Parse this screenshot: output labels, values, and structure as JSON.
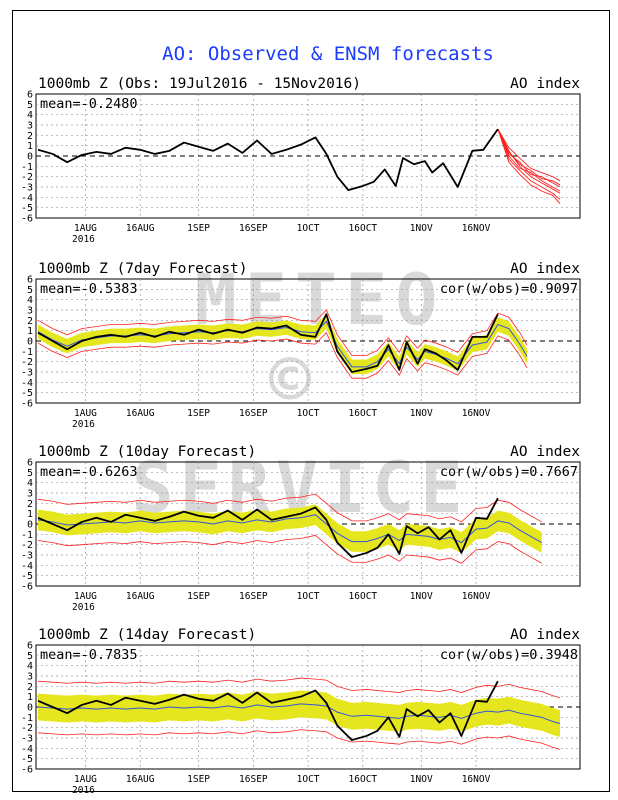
{
  "title": "AO: Observed & ENSM forecasts",
  "watermark": [
    "METEO",
    "©",
    "SERVICE"
  ],
  "colors": {
    "title": "#1a3cff",
    "observed": "#000000",
    "ensemble_mean": "#3355dd",
    "ensemble_members": "#ff2020",
    "spread": "#e6e61e",
    "grid": "#999999",
    "watermark": "#d9d9d9"
  },
  "chart_data": [
    {
      "type": "line",
      "panel_title": "1000mb Z (Obs: 19Jul2016 - 15Nov2016)",
      "right_label": "AO index",
      "mean_label": "mean=-0.2480",
      "cor_label": "",
      "x_ticks": [
        "1AUG",
        "16AUG",
        "1SEP",
        "16SEP",
        "1OCT",
        "16OCT",
        "1NOV",
        "16NOV"
      ],
      "x_year_label": "2016",
      "ylim": [
        -6,
        6
      ],
      "y_ticks": [
        6,
        5,
        4,
        3,
        2,
        1,
        0,
        -1,
        -2,
        -3,
        -4,
        -5,
        -6
      ],
      "grid": true,
      "observed": [
        [
          0,
          0.6
        ],
        [
          4,
          0.2
        ],
        [
          8,
          -0.6
        ],
        [
          12,
          0.1
        ],
        [
          16,
          0.4
        ],
        [
          20,
          0.2
        ],
        [
          24,
          0.8
        ],
        [
          28,
          0.6
        ],
        [
          32,
          0.2
        ],
        [
          36,
          0.5
        ],
        [
          40,
          1.3
        ],
        [
          44,
          0.9
        ],
        [
          48,
          0.5
        ],
        [
          52,
          1.2
        ],
        [
          56,
          0.3
        ],
        [
          60,
          1.5
        ],
        [
          64,
          0.2
        ],
        [
          68,
          0.6
        ],
        [
          72,
          1.1
        ],
        [
          76,
          1.8
        ],
        [
          79,
          0.2
        ],
        [
          82,
          -2.0
        ],
        [
          85,
          -3.3
        ],
        [
          89,
          -2.9
        ],
        [
          92,
          -2.5
        ],
        [
          95,
          -1.3
        ],
        [
          98,
          -2.9
        ],
        [
          100,
          -0.2
        ],
        [
          103,
          -0.8
        ],
        [
          106,
          -0.5
        ],
        [
          108,
          -1.6
        ],
        [
          111,
          -0.7
        ],
        [
          115,
          -3.0
        ],
        [
          119,
          0.5
        ],
        [
          122,
          0.6
        ],
        [
          126,
          2.6
        ]
      ],
      "members": [
        [
          [
            126,
            2.6
          ],
          [
            129,
            0.5
          ],
          [
            132,
            -1.0
          ],
          [
            135,
            -2.0
          ],
          [
            138,
            -2.6
          ],
          [
            141,
            -3.2
          ],
          [
            143,
            -3.6
          ]
        ],
        [
          [
            126,
            2.6
          ],
          [
            129,
            0.2
          ],
          [
            132,
            -0.6
          ],
          [
            135,
            -1.8
          ],
          [
            138,
            -2.0
          ],
          [
            141,
            -2.6
          ],
          [
            143,
            -3.0
          ]
        ],
        [
          [
            126,
            2.6
          ],
          [
            129,
            -0.3
          ],
          [
            132,
            -1.4
          ],
          [
            135,
            -2.4
          ],
          [
            138,
            -3.0
          ],
          [
            141,
            -3.6
          ],
          [
            143,
            -4.2
          ]
        ],
        [
          [
            126,
            2.6
          ],
          [
            129,
            0.8
          ],
          [
            132,
            -0.2
          ],
          [
            135,
            -1.2
          ],
          [
            138,
            -1.6
          ],
          [
            141,
            -2.0
          ],
          [
            143,
            -2.4
          ]
        ],
        [
          [
            126,
            2.6
          ],
          [
            129,
            0.0
          ],
          [
            132,
            -1.2
          ],
          [
            135,
            -1.6
          ],
          [
            138,
            -2.4
          ],
          [
            141,
            -3.0
          ],
          [
            143,
            -3.4
          ]
        ],
        [
          [
            126,
            2.6
          ],
          [
            129,
            -0.6
          ],
          [
            132,
            -1.8
          ],
          [
            135,
            -2.8
          ],
          [
            138,
            -3.4
          ],
          [
            141,
            -3.8
          ],
          [
            143,
            -4.6
          ]
        ],
        [
          [
            126,
            2.6
          ],
          [
            129,
            0.4
          ],
          [
            132,
            -0.8
          ],
          [
            135,
            -1.4
          ],
          [
            138,
            -2.2
          ],
          [
            141,
            -2.4
          ],
          [
            143,
            -2.8
          ]
        ]
      ]
    },
    {
      "type": "line",
      "panel_title": "1000mb Z (7day Forecast)",
      "right_label": "AO index",
      "mean_label": "mean=-0.5383",
      "cor_label": "cor(w/obs)=0.9097",
      "x_ticks": [
        "1AUG",
        "16AUG",
        "1SEP",
        "16SEP",
        "1OCT",
        "16OCT",
        "1NOV",
        "16NOV"
      ],
      "x_year_label": "2016",
      "ylim": [
        -6,
        6
      ],
      "y_ticks": [
        6,
        5,
        4,
        3,
        2,
        1,
        0,
        -1,
        -2,
        -3,
        -4,
        -5,
        -6
      ],
      "grid": true,
      "observed": [
        [
          0,
          0.8
        ],
        [
          4,
          0.0
        ],
        [
          8,
          -0.8
        ],
        [
          12,
          0.0
        ],
        [
          16,
          0.4
        ],
        [
          20,
          0.6
        ],
        [
          24,
          0.4
        ],
        [
          28,
          0.8
        ],
        [
          32,
          0.4
        ],
        [
          36,
          0.9
        ],
        [
          40,
          0.6
        ],
        [
          44,
          1.1
        ],
        [
          48,
          0.7
        ],
        [
          52,
          1.1
        ],
        [
          56,
          0.8
        ],
        [
          60,
          1.3
        ],
        [
          64,
          1.2
        ],
        [
          68,
          1.5
        ],
        [
          72,
          0.6
        ],
        [
          76,
          0.4
        ],
        [
          79,
          2.6
        ],
        [
          82,
          -1.0
        ],
        [
          86,
          -3.0
        ],
        [
          90,
          -2.7
        ],
        [
          93,
          -2.4
        ],
        [
          96,
          -0.4
        ],
        [
          99,
          -2.8
        ],
        [
          101,
          -0.1
        ],
        [
          104,
          -2.2
        ],
        [
          106,
          -0.8
        ],
        [
          109,
          -1.2
        ],
        [
          112,
          -1.9
        ],
        [
          115,
          -2.8
        ],
        [
          119,
          0.4
        ],
        [
          123,
          0.4
        ],
        [
          126,
          2.6
        ]
      ],
      "ens_mean": [
        [
          0,
          0.9
        ],
        [
          4,
          0.1
        ],
        [
          8,
          -0.5
        ],
        [
          12,
          0.1
        ],
        [
          16,
          0.3
        ],
        [
          20,
          0.5
        ],
        [
          24,
          0.5
        ],
        [
          28,
          0.6
        ],
        [
          32,
          0.5
        ],
        [
          36,
          0.7
        ],
        [
          40,
          0.8
        ],
        [
          44,
          0.9
        ],
        [
          48,
          0.8
        ],
        [
          52,
          1.0
        ],
        [
          56,
          0.9
        ],
        [
          60,
          1.2
        ],
        [
          64,
          1.1
        ],
        [
          68,
          1.3
        ],
        [
          72,
          0.9
        ],
        [
          76,
          0.8
        ],
        [
          79,
          1.9
        ],
        [
          82,
          -0.5
        ],
        [
          86,
          -2.5
        ],
        [
          90,
          -2.5
        ],
        [
          93,
          -2.0
        ],
        [
          96,
          -0.8
        ],
        [
          99,
          -2.2
        ],
        [
          101,
          -0.6
        ],
        [
          104,
          -1.8
        ],
        [
          106,
          -1.0
        ],
        [
          109,
          -1.3
        ],
        [
          112,
          -1.7
        ],
        [
          115,
          -2.2
        ],
        [
          119,
          -0.4
        ],
        [
          123,
          -0.1
        ],
        [
          126,
          1.6
        ],
        [
          129,
          1.2
        ],
        [
          132,
          -0.3
        ],
        [
          134,
          -1.5
        ]
      ],
      "spread": 0.7,
      "bounds_offset": 1.1
    },
    {
      "type": "line",
      "panel_title": "1000mb Z (10day Forecast)",
      "right_label": "AO index",
      "mean_label": "mean=-0.6263",
      "cor_label": "cor(w/obs)=0.7667",
      "x_ticks": [
        "1AUG",
        "16AUG",
        "1SEP",
        "16SEP",
        "1OCT",
        "16OCT",
        "1NOV",
        "16NOV"
      ],
      "x_year_label": "2016",
      "ylim": [
        -6,
        6
      ],
      "y_ticks": [
        6,
        5,
        4,
        3,
        2,
        1,
        0,
        -1,
        -2,
        -3,
        -4,
        -5,
        -6
      ],
      "grid": true,
      "observed": [
        [
          0,
          0.6
        ],
        [
          4,
          0.0
        ],
        [
          8,
          -0.6
        ],
        [
          12,
          0.2
        ],
        [
          16,
          0.6
        ],
        [
          20,
          0.2
        ],
        [
          24,
          0.9
        ],
        [
          28,
          0.6
        ],
        [
          32,
          0.3
        ],
        [
          36,
          0.7
        ],
        [
          40,
          1.2
        ],
        [
          44,
          0.8
        ],
        [
          48,
          0.6
        ],
        [
          52,
          1.3
        ],
        [
          56,
          0.4
        ],
        [
          60,
          1.4
        ],
        [
          64,
          0.4
        ],
        [
          68,
          0.7
        ],
        [
          72,
          1.0
        ],
        [
          76,
          1.6
        ],
        [
          79,
          0.4
        ],
        [
          82,
          -1.8
        ],
        [
          86,
          -3.2
        ],
        [
          90,
          -2.8
        ],
        [
          93,
          -2.3
        ],
        [
          96,
          -1.0
        ],
        [
          99,
          -2.9
        ],
        [
          101,
          -0.2
        ],
        [
          104,
          -0.9
        ],
        [
          107,
          -0.3
        ],
        [
          110,
          -1.5
        ],
        [
          113,
          -0.6
        ],
        [
          116,
          -2.8
        ],
        [
          120,
          0.6
        ],
        [
          123,
          0.5
        ],
        [
          126,
          2.5
        ]
      ],
      "ens_mean": [
        [
          0,
          0.4
        ],
        [
          4,
          0.2
        ],
        [
          8,
          -0.1
        ],
        [
          12,
          0.0
        ],
        [
          16,
          0.1
        ],
        [
          20,
          0.2
        ],
        [
          24,
          0.1
        ],
        [
          28,
          0.3
        ],
        [
          32,
          0.1
        ],
        [
          36,
          0.2
        ],
        [
          40,
          0.3
        ],
        [
          44,
          0.2
        ],
        [
          48,
          0.0
        ],
        [
          52,
          0.3
        ],
        [
          56,
          0.1
        ],
        [
          60,
          0.4
        ],
        [
          64,
          0.2
        ],
        [
          68,
          0.5
        ],
        [
          72,
          0.6
        ],
        [
          76,
          0.9
        ],
        [
          79,
          0.0
        ],
        [
          82,
          -0.9
        ],
        [
          86,
          -1.7
        ],
        [
          90,
          -1.7
        ],
        [
          93,
          -1.4
        ],
        [
          96,
          -1.0
        ],
        [
          99,
          -1.6
        ],
        [
          101,
          -1.0
        ],
        [
          104,
          -1.1
        ],
        [
          107,
          -1.2
        ],
        [
          110,
          -1.5
        ],
        [
          113,
          -1.3
        ],
        [
          116,
          -1.8
        ],
        [
          120,
          -0.5
        ],
        [
          123,
          -0.4
        ],
        [
          126,
          0.3
        ],
        [
          129,
          0.1
        ],
        [
          132,
          -0.6
        ],
        [
          135,
          -1.2
        ],
        [
          138,
          -1.8
        ]
      ],
      "spread": 1.0,
      "bounds_offset": 2.0
    },
    {
      "type": "line",
      "panel_title": "1000mb Z (14day Forecast)",
      "right_label": "AO index",
      "mean_label": "mean=-0.7835",
      "cor_label": "cor(w/obs)=0.3948",
      "x_ticks": [
        "1AUG",
        "16AUG",
        "1SEP",
        "16SEP",
        "1OCT",
        "16OCT",
        "1NOV",
        "16NOV"
      ],
      "x_year_label": "2016",
      "ylim": [
        -6,
        6
      ],
      "y_ticks": [
        6,
        5,
        4,
        3,
        2,
        1,
        0,
        -1,
        -2,
        -3,
        -4,
        -5,
        -6
      ],
      "grid": true,
      "observed": [
        [
          0,
          0.6
        ],
        [
          4,
          0.0
        ],
        [
          8,
          -0.6
        ],
        [
          12,
          0.2
        ],
        [
          16,
          0.6
        ],
        [
          20,
          0.2
        ],
        [
          24,
          0.9
        ],
        [
          28,
          0.6
        ],
        [
          32,
          0.3
        ],
        [
          36,
          0.7
        ],
        [
          40,
          1.2
        ],
        [
          44,
          0.8
        ],
        [
          48,
          0.6
        ],
        [
          52,
          1.3
        ],
        [
          56,
          0.4
        ],
        [
          60,
          1.4
        ],
        [
          64,
          0.4
        ],
        [
          68,
          0.7
        ],
        [
          72,
          1.0
        ],
        [
          76,
          1.6
        ],
        [
          79,
          0.4
        ],
        [
          82,
          -1.8
        ],
        [
          86,
          -3.2
        ],
        [
          90,
          -2.8
        ],
        [
          93,
          -2.3
        ],
        [
          96,
          -1.0
        ],
        [
          99,
          -2.9
        ],
        [
          101,
          -0.2
        ],
        [
          104,
          -0.9
        ],
        [
          107,
          -0.3
        ],
        [
          110,
          -1.5
        ],
        [
          113,
          -0.6
        ],
        [
          116,
          -2.8
        ],
        [
          120,
          0.6
        ],
        [
          123,
          0.5
        ],
        [
          126,
          2.5
        ]
      ],
      "ens_mean": [
        [
          0,
          0.0
        ],
        [
          4,
          -0.1
        ],
        [
          8,
          -0.2
        ],
        [
          12,
          -0.1
        ],
        [
          16,
          -0.2
        ],
        [
          20,
          -0.1
        ],
        [
          24,
          -0.2
        ],
        [
          28,
          -0.1
        ],
        [
          32,
          -0.2
        ],
        [
          36,
          0.0
        ],
        [
          40,
          -0.1
        ],
        [
          44,
          0.0
        ],
        [
          48,
          -0.1
        ],
        [
          52,
          0.1
        ],
        [
          56,
          -0.1
        ],
        [
          60,
          0.2
        ],
        [
          64,
          0.0
        ],
        [
          68,
          0.1
        ],
        [
          72,
          0.3
        ],
        [
          76,
          0.2
        ],
        [
          79,
          0.1
        ],
        [
          82,
          -0.5
        ],
        [
          86,
          -0.9
        ],
        [
          90,
          -0.8
        ],
        [
          93,
          -0.9
        ],
        [
          96,
          -1.0
        ],
        [
          99,
          -1.1
        ],
        [
          101,
          -0.9
        ],
        [
          104,
          -0.8
        ],
        [
          107,
          -0.9
        ],
        [
          110,
          -1.0
        ],
        [
          113,
          -0.8
        ],
        [
          116,
          -1.1
        ],
        [
          120,
          -0.6
        ],
        [
          123,
          -0.4
        ],
        [
          126,
          -0.5
        ],
        [
          129,
          -0.3
        ],
        [
          132,
          -0.6
        ],
        [
          135,
          -0.8
        ],
        [
          138,
          -1.0
        ],
        [
          141,
          -1.4
        ],
        [
          143,
          -1.6
        ]
      ],
      "spread": 1.3,
      "bounds_offset": 2.5
    }
  ]
}
